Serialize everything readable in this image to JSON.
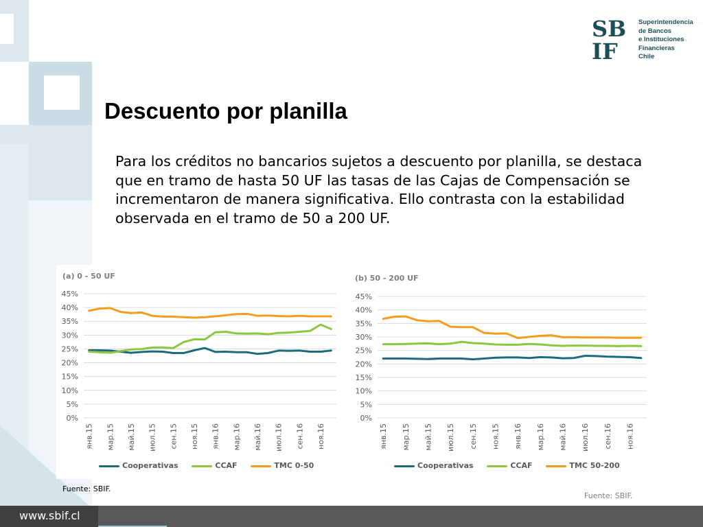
{
  "brand": {
    "logo_text": "SBIF",
    "lines": [
      "Superintendencia",
      "de Bancos",
      "e Instituciones",
      "Financieras",
      "Chile"
    ]
  },
  "title": "Descuento por planilla",
  "body": "Para los créditos no bancarios sujetos a descuento por planilla, se destaca que en tramo de hasta 50 UF las tasas de las Cajas de Compensación se incrementaron de manera significativa. Ello contrasta con la estabilidad observada en el tramo de 50 a 200 UF.",
  "colors": {
    "cooperativas": "#1a6b7c",
    "ccaf": "#8dc63f",
    "tmc": "#f39c1f",
    "grid": "#d9d9d9",
    "deco_light": "#dce8ed",
    "deco_mid": "#c9dde5",
    "footer": "#595959"
  },
  "chart_data": [
    {
      "type": "line",
      "title": "(a) 0 - 50 UF",
      "ylim": [
        0,
        45
      ],
      "yticks": [
        "0%",
        "5%",
        "10%",
        "15%",
        "20%",
        "25%",
        "30%",
        "35%",
        "40%",
        "45%"
      ],
      "x": [
        "янв.15",
        "фев.15",
        "мар.15",
        "апр.15",
        "май.15",
        "июн.15",
        "июл.15",
        "авг.15",
        "сен.15",
        "окт.15",
        "ноя.15",
        "дек.15",
        "янв.16",
        "фев.16",
        "мар.16",
        "апр.16",
        "май.16",
        "июн.16",
        "июл.16",
        "авг.16",
        "сен.16",
        "окт.16",
        "ноя.16",
        "дек.16"
      ],
      "xtick_labels": [
        "янв.15",
        "мар.15",
        "май.15",
        "июл.15",
        "сен.15",
        "ноя.15",
        "янв.16",
        "мар.16",
        "май.16",
        "июл.16",
        "сен.16",
        "ноя.16"
      ],
      "grid": true,
      "legend": "bottom",
      "series": [
        {
          "name": "Cooperativas",
          "values": [
            24.5,
            24.5,
            24.4,
            24.0,
            23.6,
            23.9,
            24.1,
            24.0,
            23.5,
            23.5,
            24.5,
            25.3,
            23.9,
            24.0,
            23.8,
            23.8,
            23.2,
            23.5,
            24.4,
            24.3,
            24.4,
            24.0,
            24.0,
            24.4
          ]
        },
        {
          "name": "CCAF",
          "values": [
            24.0,
            23.8,
            23.6,
            24.2,
            24.8,
            24.9,
            25.5,
            25.5,
            25.3,
            27.5,
            28.5,
            28.4,
            31.0,
            31.2,
            30.6,
            30.5,
            30.6,
            30.3,
            30.8,
            30.9,
            31.2,
            31.5,
            33.8,
            32.2
          ]
        },
        {
          "name": "TMC 0-50",
          "values": [
            38.8,
            39.6,
            39.8,
            38.4,
            38.0,
            38.2,
            37.0,
            36.7,
            36.7,
            36.5,
            36.3,
            36.5,
            36.8,
            37.2,
            37.6,
            37.7,
            37.0,
            37.1,
            36.9,
            36.8,
            37.0,
            36.8,
            36.8,
            36.8
          ]
        }
      ]
    },
    {
      "type": "line",
      "title": "(b) 50 - 200 UF",
      "ylim": [
        0,
        45
      ],
      "yticks": [
        "0%",
        "5%",
        "10%",
        "15%",
        "20%",
        "25%",
        "30%",
        "35%",
        "40%",
        "45%"
      ],
      "x": [
        "янв.15",
        "фев.15",
        "мар.15",
        "апр.15",
        "май.15",
        "июн.15",
        "июл.15",
        "авг.15",
        "сен.15",
        "окт.15",
        "ноя.15",
        "дек.15",
        "янв.16",
        "фев.16",
        "мар.16",
        "апр.16",
        "май.16",
        "июн.16",
        "июл.16",
        "авг.16",
        "сен.16",
        "окт.16",
        "ноя.16",
        "дек.16"
      ],
      "xtick_labels": [
        "янв.15",
        "мар.15",
        "май.15",
        "июл.15",
        "сен.15",
        "ноя.15",
        "янв.16",
        "мар.16",
        "май.16",
        "июл.16",
        "сен.16",
        "ноя.16"
      ],
      "grid": true,
      "legend": "bottom",
      "series": [
        {
          "name": "Cooperativas",
          "values": [
            22.0,
            22.0,
            22.0,
            21.9,
            21.8,
            22.0,
            22.0,
            22.0,
            21.7,
            22.0,
            22.3,
            22.4,
            22.4,
            22.2,
            22.5,
            22.4,
            22.1,
            22.2,
            23.0,
            22.9,
            22.7,
            22.6,
            22.5,
            22.2
          ]
        },
        {
          "name": "CCAF",
          "values": [
            27.3,
            27.3,
            27.4,
            27.5,
            27.6,
            27.3,
            27.5,
            28.2,
            27.7,
            27.5,
            27.2,
            27.1,
            27.1,
            27.4,
            27.2,
            26.9,
            26.7,
            26.8,
            26.8,
            26.7,
            26.7,
            26.6,
            26.7,
            26.6
          ]
        },
        {
          "name": "TMC 50-200",
          "values": [
            36.7,
            37.5,
            37.6,
            36.2,
            35.8,
            35.9,
            33.8,
            33.6,
            33.6,
            31.5,
            31.2,
            31.3,
            29.6,
            30.0,
            30.4,
            30.6,
            29.9,
            29.9,
            29.8,
            29.8,
            29.8,
            29.7,
            29.7,
            29.7
          ]
        }
      ]
    }
  ],
  "sources": {
    "a": "Fuente: SBIF.",
    "b": "Fuente: SBIF."
  },
  "footer": {
    "url": "www.sbif.cl"
  }
}
